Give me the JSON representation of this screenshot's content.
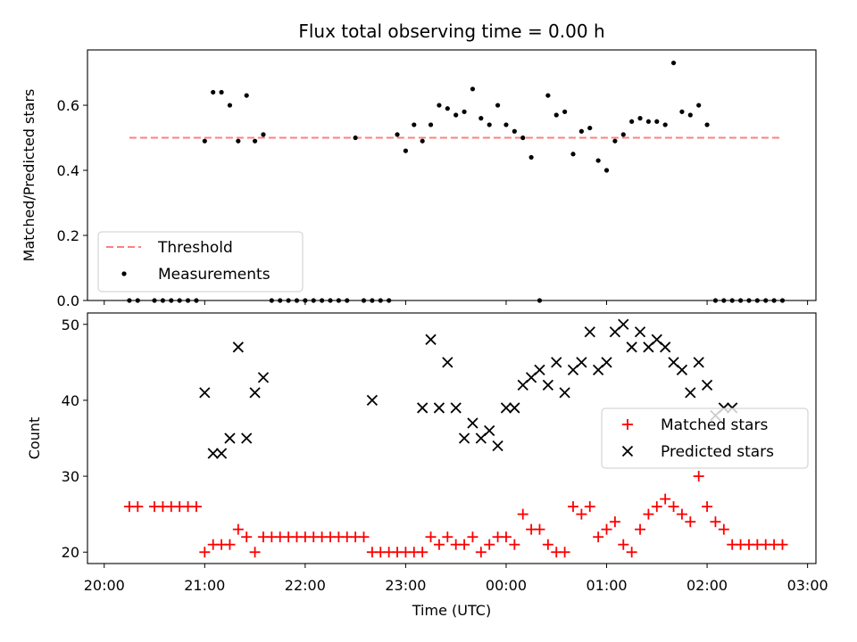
{
  "chart_data": [
    {
      "type": "scatter",
      "title": "Flux total observing time = 0.00 h",
      "ylabel": "Matched/Predicted stars",
      "ylim": [
        0,
        0.77
      ],
      "yticks": [
        0.0,
        0.2,
        0.4,
        0.6
      ],
      "ytick_labels": [
        "0.0",
        "0.2",
        "0.4",
        "0.6"
      ],
      "legend": {
        "position": "lower-left",
        "entries": [
          "Threshold",
          "Measurements"
        ]
      },
      "threshold": {
        "name": "Threshold",
        "value": 0.5,
        "x_start": "20:15",
        "x_end": "02:45",
        "color": "#ff7f7f"
      },
      "series": [
        {
          "name": "Measurements",
          "color": "#000000",
          "x": [
            "20:15",
            "20:20",
            "20:30",
            "20:35",
            "20:40",
            "20:45",
            "20:50",
            "20:55",
            "21:00",
            "21:05",
            "21:10",
            "21:15",
            "21:20",
            "21:25",
            "21:30",
            "21:35",
            "21:40",
            "21:45",
            "21:50",
            "21:55",
            "22:00",
            "22:05",
            "22:10",
            "22:15",
            "22:20",
            "22:25",
            "22:30",
            "22:35",
            "22:40",
            "22:45",
            "22:50",
            "22:55",
            "23:00",
            "23:05",
            "23:10",
            "23:15",
            "23:20",
            "23:25",
            "23:30",
            "23:35",
            "23:40",
            "23:45",
            "23:50",
            "23:55",
            "00:00",
            "00:05",
            "00:10",
            "00:15",
            "00:20",
            "00:25",
            "00:30",
            "00:35",
            "00:40",
            "00:45",
            "00:50",
            "00:55",
            "01:00",
            "01:05",
            "01:10",
            "01:15",
            "01:20",
            "01:25",
            "01:30",
            "01:35",
            "01:40",
            "01:45",
            "01:50",
            "01:55",
            "02:00",
            "02:05",
            "02:10",
            "02:15",
            "02:20",
            "02:25",
            "02:30",
            "02:35",
            "02:40",
            "02:45"
          ],
          "values": [
            0,
            0,
            0,
            0,
            0,
            0,
            0,
            0,
            0.49,
            0.64,
            0.64,
            0.6,
            0.49,
            0.63,
            0.49,
            0.51,
            0,
            0,
            0,
            0,
            0,
            0,
            0,
            0,
            0,
            0,
            0.5,
            0,
            0,
            0,
            0,
            0.51,
            0.46,
            0.54,
            0.49,
            0.54,
            0.6,
            0.59,
            0.57,
            0.58,
            0.65,
            0.56,
            0.54,
            0.6,
            0.54,
            0.52,
            0.5,
            0.44,
            0,
            0.63,
            0.57,
            0.58,
            0.45,
            0.52,
            0.53,
            0.43,
            0.4,
            0.49,
            0.51,
            0.55,
            0.56,
            0.55,
            0.55,
            0.54,
            0.73,
            0.58,
            0.57,
            0.6,
            0.54,
            0,
            0,
            0,
            0,
            0,
            0,
            0,
            0,
            0
          ]
        }
      ]
    },
    {
      "type": "scatter",
      "xlabel": "Time (UTC)",
      "ylabel": "Count",
      "ylim": [
        18.5,
        51.5
      ],
      "yticks": [
        20,
        30,
        40,
        50
      ],
      "ytick_labels": [
        "20",
        "30",
        "40",
        "50"
      ],
      "xtick_labels": [
        "20:00",
        "21:00",
        "22:00",
        "23:00",
        "00:00",
        "01:00",
        "02:00",
        "03:00"
      ],
      "legend": {
        "position": "right",
        "entries": [
          "Matched stars",
          "Predicted stars"
        ]
      },
      "series": [
        {
          "name": "Matched stars",
          "marker": "plus",
          "color": "#ff0000",
          "x": [
            "20:15",
            "20:20",
            "20:30",
            "20:35",
            "20:40",
            "20:45",
            "20:50",
            "20:55",
            "21:00",
            "21:05",
            "21:10",
            "21:15",
            "21:20",
            "21:25",
            "21:30",
            "21:35",
            "21:40",
            "21:45",
            "21:50",
            "21:55",
            "22:00",
            "22:05",
            "22:10",
            "22:15",
            "22:20",
            "22:25",
            "22:30",
            "22:35",
            "22:40",
            "22:45",
            "22:50",
            "22:55",
            "23:00",
            "23:05",
            "23:10",
            "23:15",
            "23:20",
            "23:25",
            "23:30",
            "23:35",
            "23:40",
            "23:45",
            "23:50",
            "23:55",
            "00:00",
            "00:05",
            "00:10",
            "00:15",
            "00:20",
            "00:25",
            "00:30",
            "00:35",
            "00:40",
            "00:45",
            "00:50",
            "00:55",
            "01:00",
            "01:05",
            "01:10",
            "01:15",
            "01:20",
            "01:25",
            "01:30",
            "01:35",
            "01:40",
            "01:45",
            "01:50",
            "01:55",
            "02:00",
            "02:05",
            "02:10",
            "02:15",
            "02:20",
            "02:25",
            "02:30",
            "02:35",
            "02:40",
            "02:45"
          ],
          "values": [
            26,
            26,
            26,
            26,
            26,
            26,
            26,
            26,
            20,
            21,
            21,
            21,
            23,
            22,
            20,
            22,
            22,
            22,
            22,
            22,
            22,
            22,
            22,
            22,
            22,
            22,
            22,
            22,
            20,
            20,
            20,
            20,
            20,
            20,
            20,
            22,
            21,
            22,
            21,
            21,
            22,
            20,
            21,
            22,
            22,
            21,
            25,
            23,
            23,
            21,
            20,
            20,
            26,
            25,
            26,
            22,
            23,
            24,
            21,
            20,
            23,
            25,
            26,
            27,
            26,
            25,
            24,
            30,
            26,
            24,
            23,
            21,
            21,
            21,
            21,
            21,
            21,
            21
          ]
        },
        {
          "name": "Predicted stars",
          "marker": "x",
          "color": "#000000",
          "x": [
            "21:00",
            "21:05",
            "21:10",
            "21:15",
            "21:20",
            "21:25",
            "21:30",
            "21:35",
            "22:40",
            "23:10",
            "23:15",
            "23:20",
            "23:25",
            "23:30",
            "23:35",
            "23:40",
            "23:45",
            "23:50",
            "23:55",
            "00:00",
            "00:05",
            "00:10",
            "00:15",
            "00:20",
            "00:25",
            "00:30",
            "00:35",
            "00:40",
            "00:45",
            "00:50",
            "00:55",
            "01:00",
            "01:05",
            "01:10",
            "01:15",
            "01:20",
            "01:25",
            "01:30",
            "01:35",
            "01:40",
            "01:45",
            "01:50",
            "01:55",
            "02:00",
            "02:05",
            "02:10",
            "02:15"
          ],
          "values": [
            41,
            33,
            33,
            35,
            47,
            35,
            41,
            43,
            40,
            39,
            48,
            39,
            45,
            39,
            35,
            37,
            35,
            36,
            34,
            39,
            39,
            42,
            43,
            44,
            42,
            45,
            41,
            44,
            45,
            49,
            44,
            45,
            49,
            50,
            47,
            49,
            47,
            48,
            47,
            45,
            44,
            41,
            45,
            42,
            38,
            39,
            39
          ]
        }
      ]
    }
  ]
}
